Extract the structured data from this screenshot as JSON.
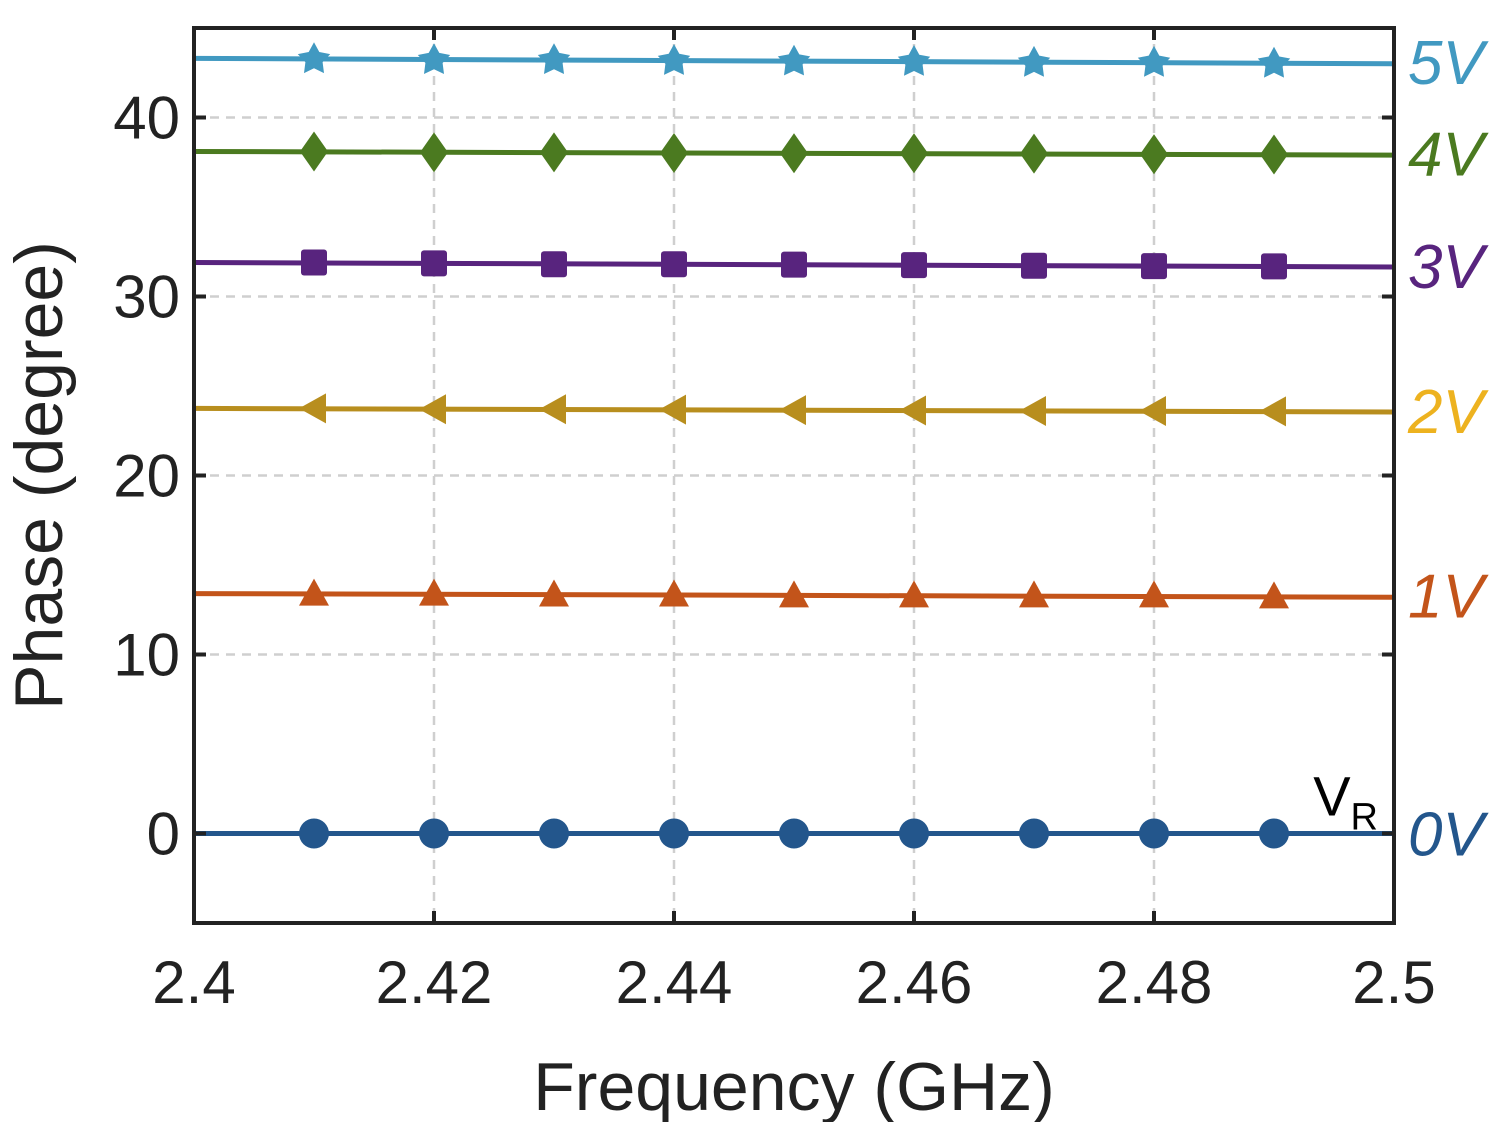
{
  "chart_data": {
    "type": "line",
    "title": "",
    "xlabel": "Frequency (GHz)",
    "ylabel": "Phase (degree)",
    "xlim": [
      2.4,
      2.5
    ],
    "ylim": [
      -5,
      45
    ],
    "xticks": [
      2.4,
      2.42,
      2.44,
      2.46,
      2.48,
      2.5
    ],
    "xtick_labels": [
      "2.4",
      "2.42",
      "2.44",
      "2.46",
      "2.48",
      "2.5"
    ],
    "yticks": [
      0,
      10,
      20,
      30,
      40
    ],
    "ytick_labels": [
      "0",
      "10",
      "20",
      "30",
      "40"
    ],
    "grid": true,
    "legend_title": "VR",
    "legend_title_main": "V",
    "legend_title_sub": "R",
    "legend_placement": "right-outside",
    "x": [
      2.41,
      2.42,
      2.43,
      2.44,
      2.45,
      2.46,
      2.47,
      2.48,
      2.49
    ],
    "series": [
      {
        "name": "0V",
        "color": "#23568c",
        "marker": "circle",
        "line": [
          [
            2.4,
            0.0
          ],
          [
            2.5,
            0.0
          ]
        ],
        "values": [
          0.0,
          0.0,
          0.0,
          0.0,
          0.0,
          0.0,
          0.0,
          0.0,
          0.0
        ]
      },
      {
        "name": "1V",
        "color": "#c3541a",
        "marker": "triangle-up",
        "line": [
          [
            2.4,
            13.4
          ],
          [
            2.5,
            13.2
          ]
        ],
        "values": [
          13.4,
          13.4,
          13.35,
          13.35,
          13.3,
          13.3,
          13.3,
          13.3,
          13.25
        ]
      },
      {
        "name": "2V",
        "color": "#b88e1e",
        "marker": "triangle-left",
        "line": [
          [
            2.4,
            23.75
          ],
          [
            2.5,
            23.55
          ]
        ],
        "values": [
          23.75,
          23.7,
          23.7,
          23.68,
          23.65,
          23.63,
          23.6,
          23.6,
          23.58
        ]
      },
      {
        "name": "3V",
        "color": "#58247e",
        "marker": "square",
        "line": [
          [
            2.4,
            31.9
          ],
          [
            2.5,
            31.65
          ]
        ],
        "values": [
          31.9,
          31.85,
          31.8,
          31.8,
          31.78,
          31.75,
          31.72,
          31.7,
          31.68
        ]
      },
      {
        "name": "4V",
        "color": "#4b7a20",
        "marker": "diamond",
        "line": [
          [
            2.4,
            38.1
          ],
          [
            2.5,
            37.9
          ]
        ],
        "values": [
          38.1,
          38.05,
          38.05,
          38.02,
          38.0,
          38.0,
          37.98,
          37.95,
          37.93
        ]
      },
      {
        "name": "5V",
        "color": "#4199c1",
        "marker": "star",
        "line": [
          [
            2.4,
            43.3
          ],
          [
            2.5,
            43.0
          ]
        ],
        "values": [
          43.25,
          43.2,
          43.2,
          43.15,
          43.12,
          43.1,
          43.05,
          43.05,
          43.0
        ]
      }
    ],
    "label_colors": {
      "0V": "#23568c",
      "1V": "#c3541a",
      "2V": "#edb21f",
      "3V": "#58247e",
      "4V": "#4b7a20",
      "5V": "#4199c1"
    }
  }
}
